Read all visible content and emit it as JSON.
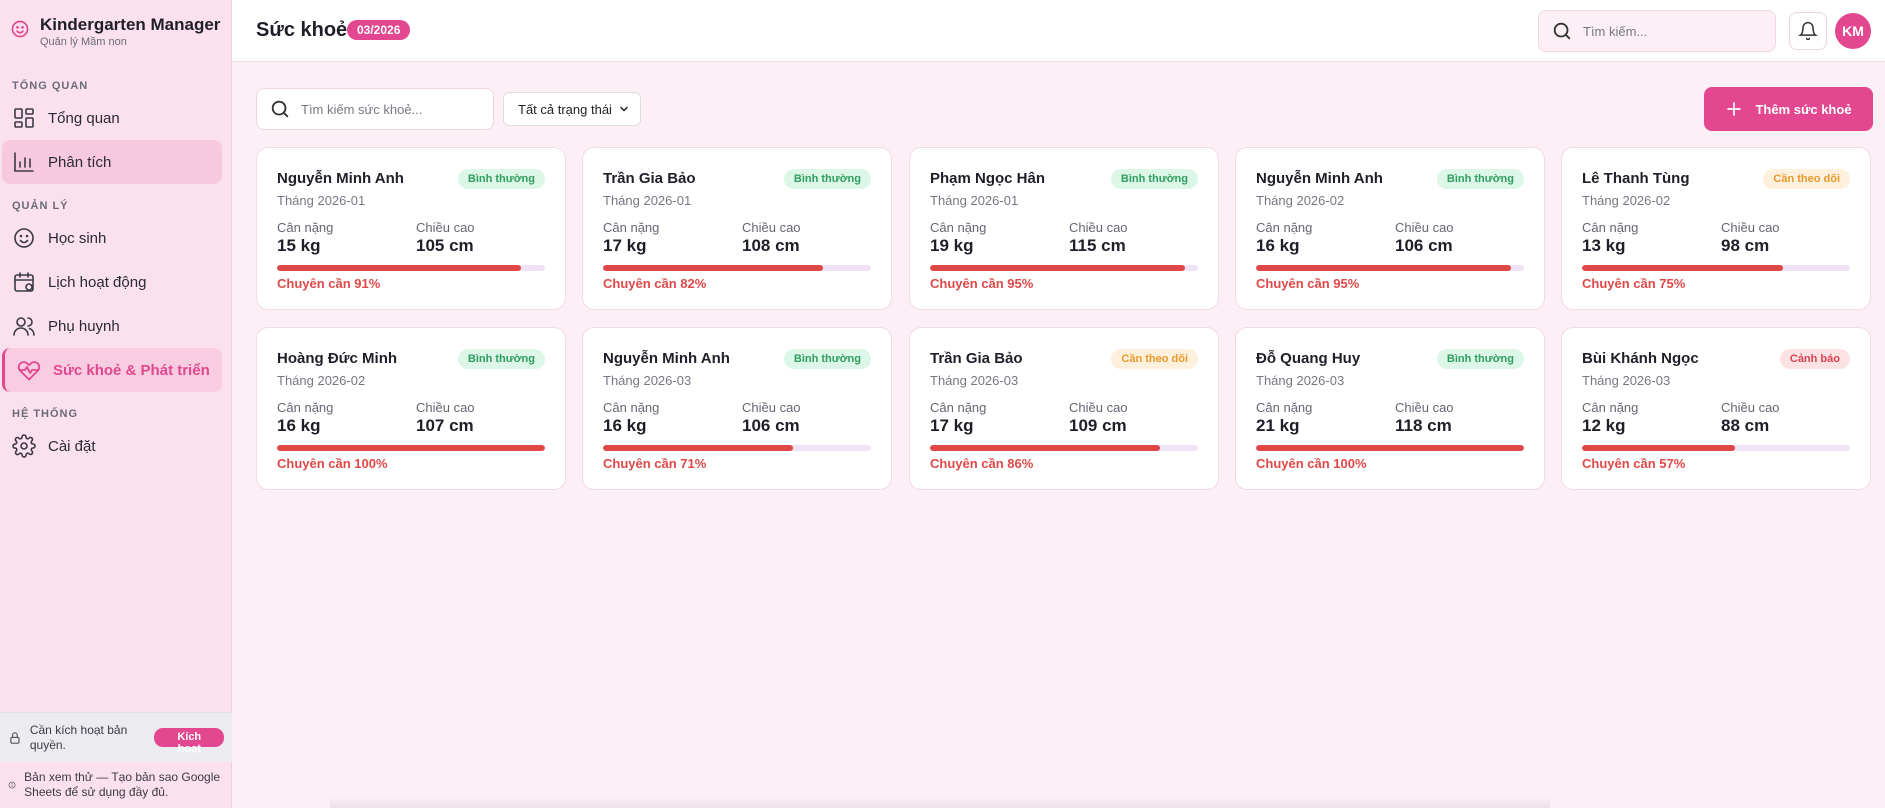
{
  "brand": {
    "title": "Kindergarten Manager",
    "subtitle": "Quản lý Mầm non",
    "icon": "smile-face-icon"
  },
  "sidebar": {
    "sections": [
      {
        "label": "TỔNG QUAN"
      },
      {
        "label": "QUẢN LÝ"
      },
      {
        "label": "HỆ THỐNG"
      }
    ],
    "items": [
      {
        "label": "Tổng quan",
        "icon": "dashboard-grid-icon"
      },
      {
        "label": "Phân tích",
        "icon": "bar-chart-icon"
      },
      {
        "label": "Học sinh",
        "icon": "smile-icon"
      },
      {
        "label": "Lịch hoạt động",
        "icon": "calendar-icon"
      },
      {
        "label": "Phụ huynh",
        "icon": "users-icon"
      },
      {
        "label": "Sức khoẻ & Phát triển",
        "icon": "heart-pulse-icon"
      },
      {
        "label": "Cài đặt",
        "icon": "gear-icon"
      }
    ],
    "license": {
      "text": "Cần kích hoạt bản quyền.",
      "button": "Kích hoạt"
    },
    "trial_note": "Bản xem thử — Tạo bản sao Google Sheets để sử dụng đầy đủ."
  },
  "header": {
    "title": "Sức khoẻ",
    "month_badge": "03/2026",
    "search_placeholder": "Tìm kiếm...",
    "avatar": "KM"
  },
  "toolbar": {
    "search_placeholder": "Tìm kiếm sức khoẻ...",
    "status_filter": "Tất cả trạng thái",
    "add_button": "Thêm sức khoẻ"
  },
  "labels": {
    "weight": "Cân nặng",
    "height": "Chiều cao"
  },
  "colors": {
    "accent": "#e2478f",
    "attendance": "#e04848",
    "normal": "#2f9e5e",
    "watch": "#e89a2c",
    "warn": "#d94353"
  },
  "cards": [
    {
      "name": "Nguyễn Minh Anh",
      "month": "Tháng 2026-01",
      "status": "Bình thường",
      "status_type": "normal",
      "weight": "15 kg",
      "height": "105 cm",
      "attendance_text": "Chuyên cần 91%",
      "attendance": 91
    },
    {
      "name": "Trần Gia Bảo",
      "month": "Tháng 2026-01",
      "status": "Bình thường",
      "status_type": "normal",
      "weight": "17 kg",
      "height": "108 cm",
      "attendance_text": "Chuyên cần 82%",
      "attendance": 82
    },
    {
      "name": "Phạm Ngọc Hân",
      "month": "Tháng 2026-01",
      "status": "Bình thường",
      "status_type": "normal",
      "weight": "19 kg",
      "height": "115 cm",
      "attendance_text": "Chuyên cần 95%",
      "attendance": 95
    },
    {
      "name": "Nguyễn Minh Anh",
      "month": "Tháng 2026-02",
      "status": "Bình thường",
      "status_type": "normal",
      "weight": "16 kg",
      "height": "106 cm",
      "attendance_text": "Chuyên cần 95%",
      "attendance": 95
    },
    {
      "name": "Lê Thanh Tùng",
      "month": "Tháng 2026-02",
      "status": "Cần theo dõi",
      "status_type": "watch",
      "weight": "13 kg",
      "height": "98 cm",
      "attendance_text": "Chuyên cần 75%",
      "attendance": 75
    },
    {
      "name": "Hoàng Đức Minh",
      "month": "Tháng 2026-02",
      "status": "Bình thường",
      "status_type": "normal",
      "weight": "16 kg",
      "height": "107 cm",
      "attendance_text": "Chuyên cần 100%",
      "attendance": 100
    },
    {
      "name": "Nguyễn Minh Anh",
      "month": "Tháng 2026-03",
      "status": "Bình thường",
      "status_type": "normal",
      "weight": "16 kg",
      "height": "106 cm",
      "attendance_text": "Chuyên cần 71%",
      "attendance": 71
    },
    {
      "name": "Trần Gia Bảo",
      "month": "Tháng 2026-03",
      "status": "Cần theo dõi",
      "status_type": "watch",
      "weight": "17 kg",
      "height": "109 cm",
      "attendance_text": "Chuyên cần 86%",
      "attendance": 86
    },
    {
      "name": "Đỗ Quang Huy",
      "month": "Tháng 2026-03",
      "status": "Bình thường",
      "status_type": "normal",
      "weight": "21 kg",
      "height": "118 cm",
      "attendance_text": "Chuyên cần 100%",
      "attendance": 100
    },
    {
      "name": "Bùi Khánh Ngọc",
      "month": "Tháng 2026-03",
      "status": "Cảnh báo",
      "status_type": "warn",
      "weight": "12 kg",
      "height": "88 cm",
      "attendance_text": "Chuyên cần 57%",
      "attendance": 57
    }
  ]
}
